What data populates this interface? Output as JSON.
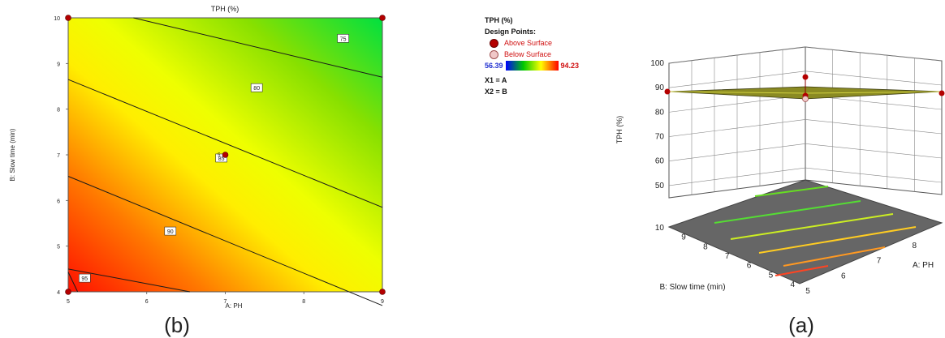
{
  "panel_labels": {
    "contour": "(b)",
    "surface": "(a)"
  },
  "colors": {
    "low": "#00e000",
    "mid": "#ffff00",
    "high": "#ff0000",
    "point": "#b40000"
  },
  "legend": {
    "title": "TPH (%)",
    "design_points_label": "Design Points:",
    "above_surface": "Above Surface",
    "below_surface": "Below Surface",
    "min_value": "56.39",
    "max_value": "94.23",
    "x1_map": "X1 = A",
    "x2_map": "X2 = B"
  },
  "chart_data": [
    {
      "type": "contour",
      "title": "TPH (%)",
      "xlabel": "A: PH",
      "ylabel": "B: Slow time  (min)",
      "xlim": [
        5,
        9
      ],
      "ylim": [
        4,
        10
      ],
      "xticks": [
        "5",
        "6",
        "7",
        "8",
        "9"
      ],
      "yticks": [
        "4",
        "5",
        "6",
        "7",
        "8",
        "9",
        "10"
      ],
      "contours": [
        {
          "label": "75",
          "points": [
            [
              5.83,
              10
            ],
            [
              9,
              8.7
            ]
          ],
          "label_at": [
            8.5,
            9.55
          ]
        },
        {
          "label": "80",
          "points": [
            [
              5,
              8.65
            ],
            [
              9,
              5.85
            ]
          ],
          "label_at": [
            7.4,
            8.47
          ]
        },
        {
          "label": "85",
          "points": [
            [
              5,
              6.53
            ],
            [
              9,
              3.7
            ]
          ],
          "label_at": [
            6.95,
            6.93
          ]
        },
        {
          "label": "90",
          "points": [
            [
              5,
              4.5
            ],
            [
              6.55,
              4.0
            ]
          ],
          "label_at": [
            6.3,
            5.33
          ]
        },
        {
          "label": "95",
          "points": [
            [
              5,
              4.43
            ],
            [
              5.12,
              4.0
            ]
          ],
          "label_at": [
            5.21,
            4.3
          ]
        }
      ],
      "design_points": [
        {
          "x": 5,
          "y": 10
        },
        {
          "x": 9,
          "y": 10
        },
        {
          "x": 5,
          "y": 4
        },
        {
          "x": 9,
          "y": 4
        },
        {
          "x": 7,
          "y": 7,
          "label": "5"
        }
      ]
    },
    {
      "type": "surface3d",
      "zlabel": "TPH (%)",
      "xlabel": "A: PH",
      "ylabel": "B: Slow time  (min)",
      "zticks": [
        "50",
        "60",
        "70",
        "80",
        "90",
        "100"
      ],
      "xticks": [
        "5",
        "6",
        "7",
        "8",
        "9"
      ],
      "yticks": [
        "4",
        "5",
        "6",
        "7",
        "8",
        "9",
        "10"
      ],
      "zlim": [
        50,
        100
      ]
    }
  ]
}
